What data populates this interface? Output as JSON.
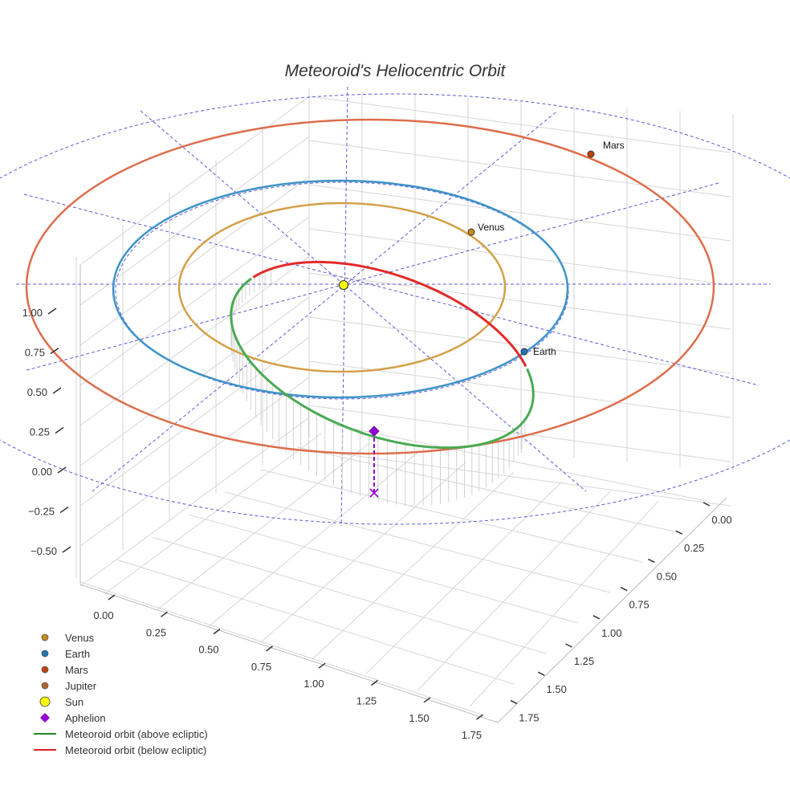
{
  "chart_data": {
    "type": "scatter",
    "projection": "3d",
    "title": "Meteoroid's Heliocentric Orbit",
    "axes": {
      "x_ticks": [
        "0.00",
        "0.25",
        "0.50",
        "0.75",
        "1.00",
        "1.25",
        "1.50",
        "1.75"
      ],
      "y_ticks": [
        "0.00",
        "0.25",
        "0.50",
        "0.75",
        "1.00",
        "1.25",
        "1.50",
        "1.75"
      ],
      "z_ticks": [
        "−0.50",
        "−0.25",
        "0.00",
        "0.25",
        "0.50",
        "0.75",
        "1.00"
      ]
    },
    "orbits": [
      {
        "name": "Venus",
        "semi_major_au": 0.72,
        "color": "#d4a04a"
      },
      {
        "name": "Earth",
        "semi_major_au": 1.0,
        "color": "#3f93c8"
      },
      {
        "name": "Mars",
        "semi_major_au": 1.52,
        "color": "#dc6e4c"
      }
    ],
    "reference_grid": {
      "style": "dashed",
      "color": "#5b5bd6"
    },
    "points": [
      {
        "name": "Sun",
        "label": "",
        "color": "#ffff00"
      },
      {
        "name": "Venus",
        "label": "Venus",
        "color": "#c98a1e"
      },
      {
        "name": "Earth",
        "label": "Earth",
        "color": "#1f77b4"
      },
      {
        "name": "Mars",
        "label": "Mars",
        "color": "#c1440e"
      },
      {
        "name": "Aphelion",
        "label": "",
        "color": "#9400d3"
      }
    ],
    "meteoroid_orbit": {
      "above_color": "#3aa040",
      "below_color": "#e02020"
    },
    "legend": [
      {
        "label": "Venus",
        "marker": "circle",
        "color": "#c98a1e"
      },
      {
        "label": "Earth",
        "marker": "circle",
        "color": "#1f77b4"
      },
      {
        "label": "Mars",
        "marker": "circle",
        "color": "#c1440e"
      },
      {
        "label": "Jupiter",
        "marker": "circle",
        "color": "#b5652a"
      },
      {
        "label": "Sun",
        "marker": "big-circle",
        "color": "#ffff00"
      },
      {
        "label": "Aphelion",
        "marker": "diamond",
        "color": "#9400d3"
      },
      {
        "label": "Meteoroid orbit (above ecliptic)",
        "marker": "line",
        "color": "#228b22"
      },
      {
        "label": "Meteoroid orbit (below ecliptic)",
        "marker": "line",
        "color": "#e02020"
      }
    ]
  }
}
